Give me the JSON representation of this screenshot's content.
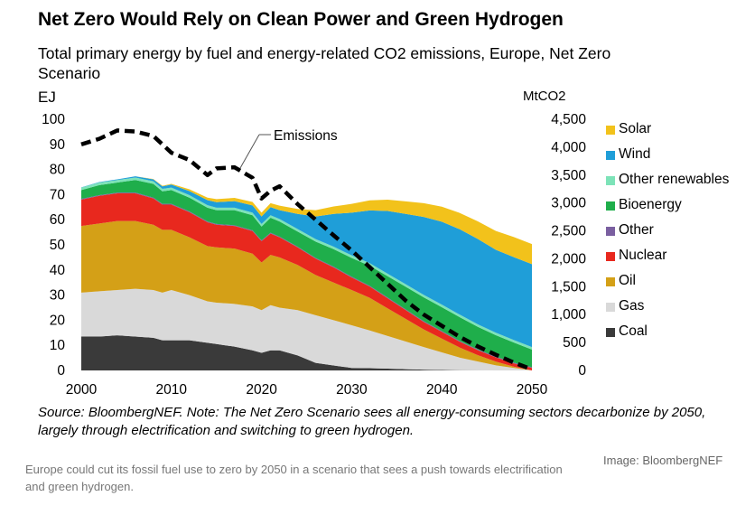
{
  "title": "Net Zero Would Rely on Clean Power and Green Hydrogen",
  "subtitle": "Total primary energy by fuel and energy-related  CO2 emissions, Europe, Net Zero Scenario",
  "source": "Source: BloombergNEF. Note: The Net Zero Scenario sees all energy-consuming sectors decarbonize by 2050, largely through electrification and switching to green hydrogen.",
  "image_credit": "Image: BloombergNEF",
  "caption": "Europe could cut its fossil fuel use to zero by 2050 in a scenario that sees a push towards electrification and green hydrogen.",
  "chart_data": {
    "type": "area",
    "stacked": true,
    "ylabel": "EJ",
    "y2label": "MtCO2",
    "ylim": [
      0,
      100
    ],
    "y2lim": [
      0,
      4500
    ],
    "xlim": [
      2000,
      2050
    ],
    "yticks": [
      "0",
      "10",
      "20",
      "30",
      "40",
      "50",
      "60",
      "70",
      "80",
      "90",
      "100"
    ],
    "y2ticks": [
      "0",
      "500",
      "1,000",
      "1,500",
      "2,000",
      "2,500",
      "3,000",
      "3,500",
      "4,000",
      "4,500"
    ],
    "xticks": [
      "2000",
      "2010",
      "2020",
      "2030",
      "2040",
      "2050"
    ],
    "x": [
      2000,
      2002,
      2004,
      2006,
      2008,
      2009,
      2010,
      2012,
      2014,
      2015,
      2017,
      2019,
      2020,
      2021,
      2022,
      2024,
      2026,
      2028,
      2030,
      2032,
      2034,
      2036,
      2038,
      2040,
      2042,
      2044,
      2046,
      2048,
      2050
    ],
    "series": [
      {
        "name": "Coal",
        "color": "#3a3a3a",
        "values": [
          13.5,
          13.5,
          14,
          13.5,
          13,
          12,
          12,
          12,
          11,
          10.5,
          9.5,
          8,
          7,
          8,
          8,
          6,
          3,
          2,
          1,
          0.9,
          0.7,
          0.5,
          0.3,
          0.2,
          0.1,
          0.05,
          0.02,
          0,
          0
        ]
      },
      {
        "name": "Gas",
        "color": "#d9d9d9",
        "values": [
          17.5,
          18,
          18,
          19,
          19,
          19,
          20,
          18,
          16.5,
          16.5,
          17,
          17.5,
          17,
          18,
          17,
          18,
          19,
          18,
          17,
          15,
          13,
          11,
          9,
          7,
          5,
          3.5,
          2,
          1,
          0
        ]
      },
      {
        "name": "Oil",
        "color": "#d4a017",
        "values": [
          26.5,
          27,
          27.5,
          27,
          26,
          25,
          24,
          23,
          22,
          22,
          22,
          21,
          19,
          20,
          20,
          18,
          16,
          15,
          14,
          13,
          11,
          9,
          7,
          5.5,
          4,
          2.5,
          1.5,
          0.5,
          0
        ]
      },
      {
        "name": "Nuclear",
        "color": "#e8281e",
        "values": [
          10.5,
          11,
          11,
          11,
          10.5,
          10,
          10,
          10,
          9.5,
          9,
          9,
          9,
          8.5,
          8.5,
          8,
          7,
          6.5,
          6,
          5,
          4.5,
          4,
          3.5,
          3,
          2.7,
          2.3,
          2,
          1.7,
          1.3,
          1
        ]
      },
      {
        "name": "Other",
        "color": "#7a5fa0",
        "values": [
          0.3,
          0.3,
          0.3,
          0.3,
          0.3,
          0.3,
          0.3,
          0.3,
          0.3,
          0.3,
          0.3,
          0.3,
          0.3,
          0.3,
          0.3,
          0.3,
          0.3,
          0.3,
          0.3,
          0.3,
          0.3,
          0.3,
          0.3,
          0.3,
          0.3,
          0.3,
          0.3,
          0.3,
          0.3
        ]
      },
      {
        "name": "Bioenergy",
        "color": "#1fae4b",
        "values": [
          3.5,
          4,
          4,
          5,
          5.5,
          5,
          5.5,
          5.5,
          5.5,
          5.5,
          6,
          6,
          5.5,
          6,
          6,
          6,
          6.5,
          7,
          7.5,
          8,
          8.5,
          9,
          9.5,
          9.5,
          9.5,
          9,
          8.5,
          8,
          7
        ]
      },
      {
        "name": "Other renewables",
        "color": "#7de3b8",
        "values": [
          1,
          1,
          1,
          1,
          1,
          1,
          1,
          1,
          1,
          1,
          1,
          1,
          1,
          1,
          1,
          1,
          1,
          1,
          1,
          1,
          1,
          1,
          1,
          1,
          1,
          1,
          1,
          1,
          1
        ]
      },
      {
        "name": "Wind",
        "color": "#1f9ed8",
        "values": [
          0.1,
          0.2,
          0.3,
          0.5,
          0.8,
          1,
          1.2,
          1.6,
          2,
          2.2,
          2.6,
          2.9,
          3,
          3.2,
          3.5,
          6,
          9,
          13,
          17,
          21,
          25,
          28,
          31,
          33,
          34,
          34,
          33,
          33,
          33
        ]
      },
      {
        "name": "Solar",
        "color": "#f2c21b",
        "values": [
          0,
          0,
          0,
          0,
          0.1,
          0.2,
          0.3,
          0.7,
          1,
          1.2,
          1.3,
          1.4,
          1.5,
          1.6,
          1.8,
          2,
          2.5,
          3,
          3.5,
          4,
          4.5,
          5,
          5.5,
          6,
          6.5,
          7,
          7.5,
          8,
          8
        ]
      }
    ],
    "emissions": {
      "name": "Emissions",
      "x": [
        2000,
        2002,
        2004,
        2006,
        2008,
        2009,
        2010,
        2012,
        2014,
        2015,
        2017,
        2019,
        2020,
        2021,
        2022,
        2024,
        2026,
        2028,
        2030,
        2032,
        2034,
        2036,
        2038,
        2040,
        2042,
        2044,
        2046,
        2048,
        2050
      ],
      "values": [
        4050,
        4150,
        4300,
        4280,
        4200,
        4050,
        3900,
        3770,
        3500,
        3620,
        3640,
        3450,
        3080,
        3220,
        3300,
        2980,
        2700,
        2420,
        2150,
        1850,
        1550,
        1250,
        1000,
        800,
        600,
        430,
        280,
        140,
        20
      ]
    },
    "grid": false,
    "legend_position": "right"
  }
}
